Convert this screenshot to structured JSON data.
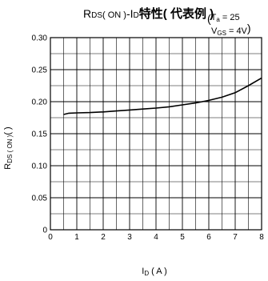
{
  "chart_data": {
    "type": "line",
    "title": {
      "prefix": "R",
      "sub1": "DS",
      "p1": "( ON )",
      "dash": "-",
      "i": "I",
      "sub2": "D",
      "bold": "特性( 代表例 )"
    },
    "conditions": {
      "ta_prefix": "(",
      "ta_main": "T",
      "ta_sub": "a",
      "ta_value": " = 25",
      "vgs_main": "V",
      "vgs_sub": "GS",
      "vgs_value": " = 4V",
      "vgs_suffix": ")"
    },
    "xlabel": {
      "main": "I",
      "sub": "D",
      "unit": " ( A )"
    },
    "ylabel": {
      "main": "R",
      "sub": "DS ( ON )",
      "unit": "(  )"
    },
    "xlim": [
      0,
      8
    ],
    "ylim": [
      0,
      0.3
    ],
    "x_ticks": [
      "0",
      "1",
      "2",
      "3",
      "4",
      "5",
      "6",
      "7",
      "8"
    ],
    "y_ticks": [
      "0",
      "0.05",
      "0.10",
      "0.15",
      "0.20",
      "0.25",
      "0.30"
    ],
    "grid": true,
    "series": [
      {
        "x": [
          0.5,
          0.7,
          1.0,
          1.5,
          2.0,
          2.5,
          3.0,
          3.5,
          4.0,
          4.5,
          5.0,
          5.5,
          6.0,
          6.5,
          7.0,
          7.5,
          8.0
        ],
        "y": [
          0.18,
          0.182,
          0.1825,
          0.183,
          0.184,
          0.1855,
          0.187,
          0.1885,
          0.19,
          0.192,
          0.195,
          0.198,
          0.202,
          0.207,
          0.214,
          0.225,
          0.237
        ]
      }
    ],
    "colors": {
      "line": "#000000",
      "grid": "#000000"
    }
  }
}
